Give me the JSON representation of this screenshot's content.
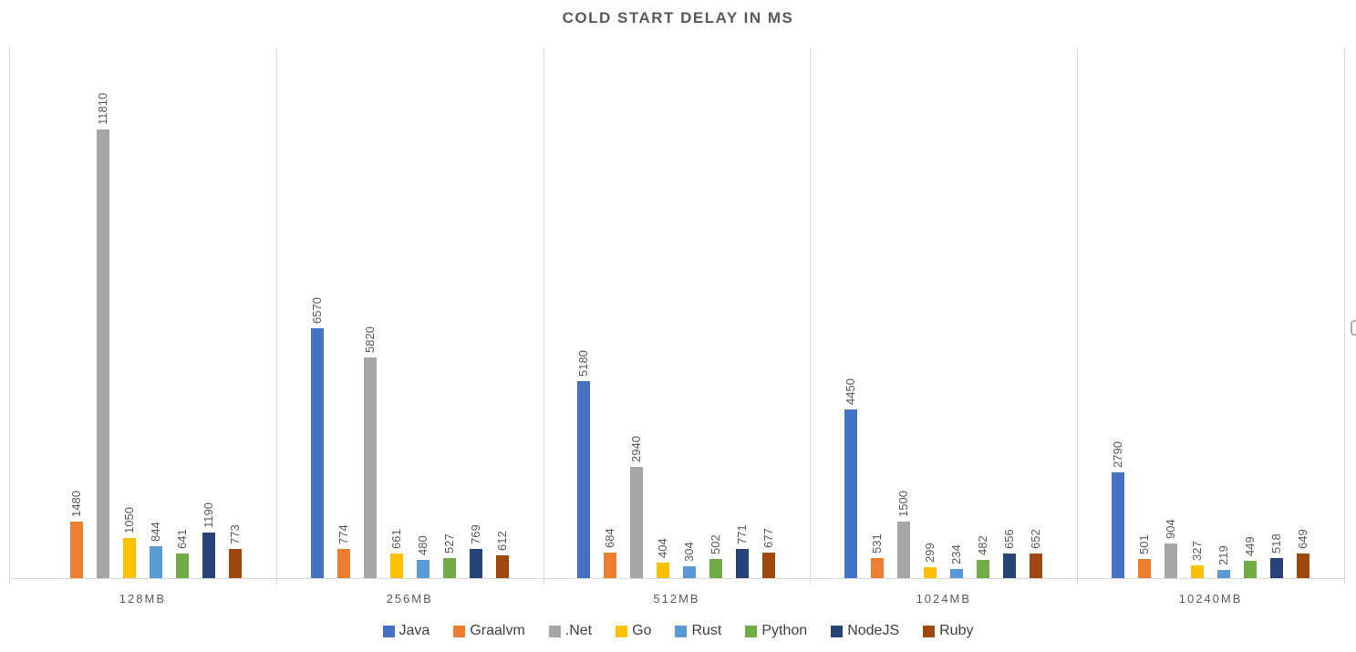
{
  "title": "COLD START DELAY IN MS",
  "chart_data": {
    "type": "bar",
    "title": "COLD START DELAY IN MS",
    "categories": [
      "128MB",
      "256MB",
      "512MB",
      "1024MB",
      "10240MB"
    ],
    "series": [
      {
        "name": "Java",
        "color": "#4472C4",
        "values": [
          null,
          6570,
          5180,
          4450,
          2790
        ]
      },
      {
        "name": "Graalvm",
        "color": "#ED7D31",
        "values": [
          1480,
          774,
          684,
          531,
          501
        ]
      },
      {
        "name": ".Net",
        "color": "#A5A5A5",
        "values": [
          11810,
          5820,
          2940,
          1500,
          904
        ]
      },
      {
        "name": "Go",
        "color": "#FFC000",
        "values": [
          1050,
          661,
          404,
          299,
          327
        ]
      },
      {
        "name": "Rust",
        "color": "#5B9BD5",
        "values": [
          844,
          480,
          304,
          234,
          219
        ]
      },
      {
        "name": "Python",
        "color": "#70AD47",
        "values": [
          641,
          527,
          502,
          482,
          449
        ]
      },
      {
        "name": "NodeJS",
        "color": "#264478",
        "values": [
          1190,
          769,
          771,
          656,
          518
        ]
      },
      {
        "name": "Ruby",
        "color": "#9E480E",
        "values": [
          773,
          612,
          677,
          652,
          649
        ]
      }
    ],
    "xlabel": "",
    "ylabel": "",
    "ylim": [
      0,
      14000
    ],
    "y_axis_visible": false,
    "data_labels": "rotated-90-above-bars",
    "legend_position": "bottom",
    "grid": "vertical-category-separators",
    "text_color": "#595959",
    "legend_text_color": "#404040",
    "gridline_color": "#D9D9D9",
    "background_color": "#FFFFFF"
  }
}
